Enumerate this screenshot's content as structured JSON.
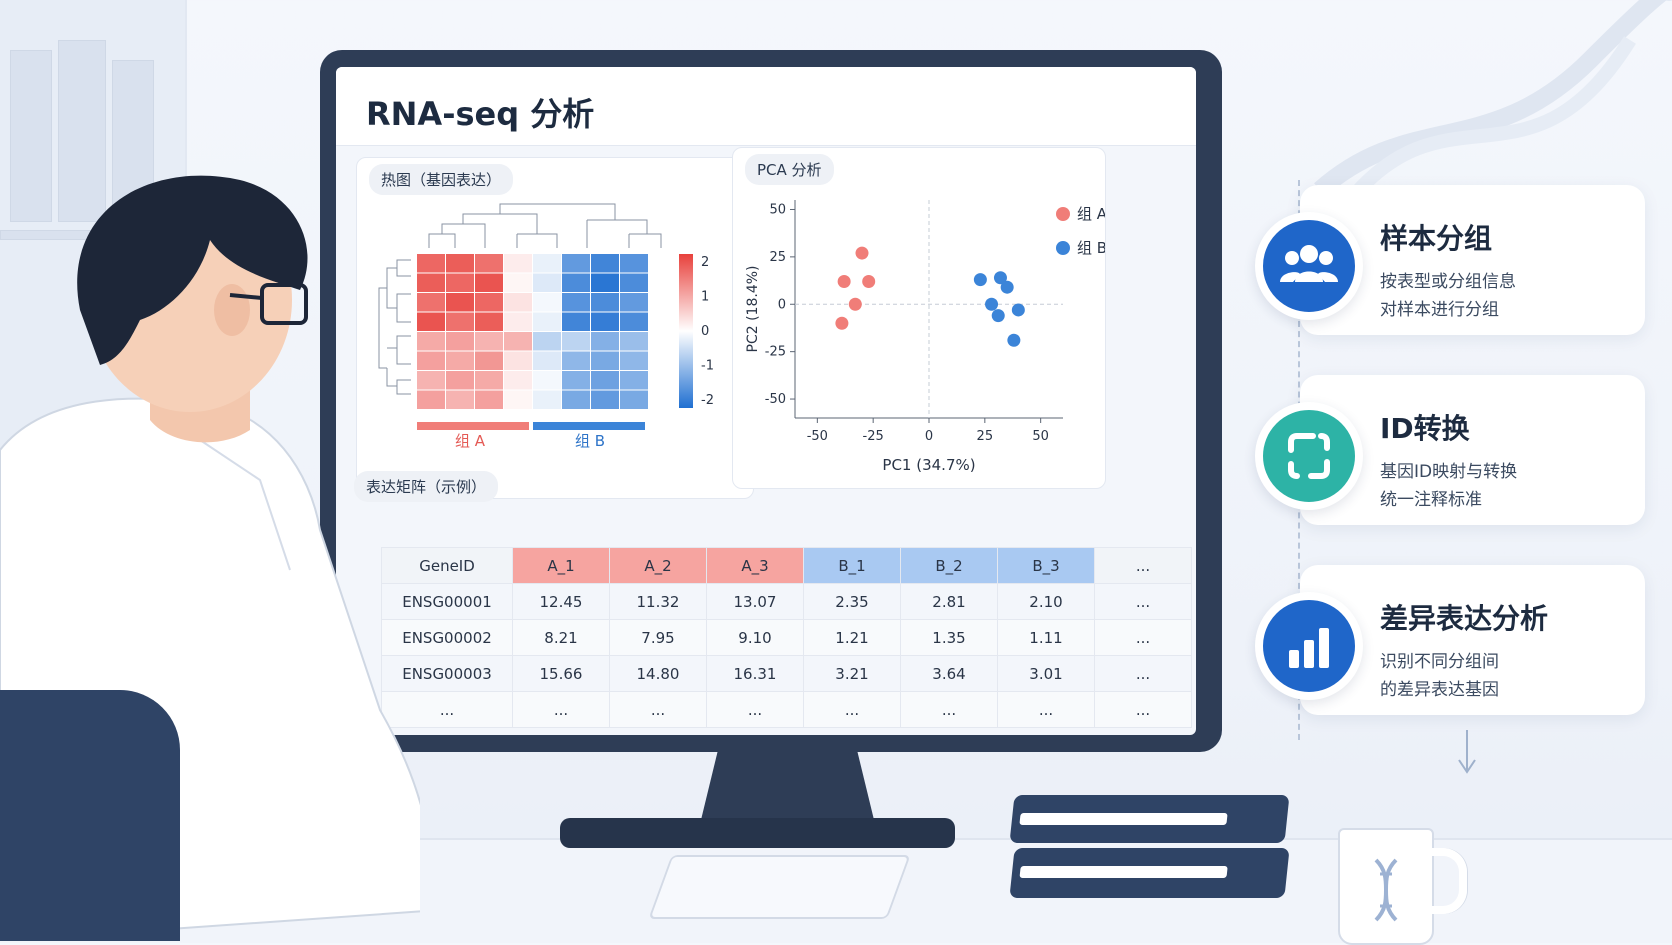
{
  "screen": {
    "title": "RNA-seq 分析",
    "heatmap": {
      "label": "热图（基因表达）",
      "group_a": "组 A",
      "group_b": "组 B",
      "colorbar_ticks": [
        "2",
        "1",
        "0",
        "-1",
        "-2"
      ],
      "colors": {
        "high": "#e8413c",
        "mid": "#ffffff",
        "low": "#1f6fd1"
      },
      "matrix": [
        [
          1.6,
          1.7,
          1.5,
          0.2,
          -0.2,
          -1.4,
          -1.7,
          -1.5
        ],
        [
          1.7,
          1.6,
          1.8,
          0.1,
          -0.3,
          -1.6,
          -1.9,
          -1.6
        ],
        [
          1.5,
          1.8,
          1.6,
          0.3,
          -0.1,
          -1.5,
          -1.6,
          -1.4
        ],
        [
          1.8,
          1.5,
          1.7,
          0.2,
          -0.2,
          -1.7,
          -1.8,
          -1.6
        ],
        [
          0.9,
          1.0,
          0.8,
          0.8,
          -0.6,
          -0.6,
          -1.1,
          -0.9
        ],
        [
          1.0,
          0.9,
          1.1,
          0.3,
          -0.3,
          -1.0,
          -1.2,
          -1.0
        ],
        [
          0.8,
          1.0,
          0.9,
          0.2,
          -0.1,
          -1.1,
          -1.3,
          -1.1
        ],
        [
          1.0,
          0.8,
          1.0,
          0.1,
          -0.2,
          -1.2,
          -1.4,
          -1.2
        ]
      ]
    },
    "pca": {
      "label": "PCA 分析",
      "legend": [
        "组 A",
        "组 B"
      ]
    },
    "matrix_label": "表达矩阵（示例）",
    "table": {
      "headers": [
        "GeneID",
        "A_1",
        "A_2",
        "A_3",
        "B_1",
        "B_2",
        "B_3",
        "..."
      ],
      "rows": [
        [
          "ENSG00001",
          "12.45",
          "11.32",
          "13.07",
          "2.35",
          "2.81",
          "2.10",
          "..."
        ],
        [
          "ENSG00002",
          "8.21",
          "7.95",
          "9.10",
          "1.21",
          "1.35",
          "1.11",
          "..."
        ],
        [
          "ENSG00003",
          "15.66",
          "14.80",
          "16.31",
          "3.21",
          "3.64",
          "3.01",
          "..."
        ],
        [
          "...",
          "...",
          "...",
          "...",
          "...",
          "...",
          "...",
          "..."
        ]
      ]
    }
  },
  "chart_data": {
    "type": "scatter",
    "xlabel": "PC1 (34.7%)",
    "ylabel": "PC2 (18.4%)",
    "xlim": [
      -60,
      60
    ],
    "ylim": [
      -60,
      55
    ],
    "xticks": [
      -50,
      -25,
      0,
      25,
      50
    ],
    "yticks": [
      50,
      25,
      0,
      -25,
      -50
    ],
    "legend_position": "top-right",
    "series": [
      {
        "name": "组 A",
        "color": "#f07d78",
        "points": [
          [
            -30,
            27
          ],
          [
            -38,
            12
          ],
          [
            -27,
            12
          ],
          [
            -33,
            0
          ],
          [
            -39,
            -10
          ]
        ]
      },
      {
        "name": "组 B",
        "color": "#3b84d8",
        "points": [
          [
            23,
            13
          ],
          [
            32,
            14
          ],
          [
            35,
            9
          ],
          [
            28,
            0
          ],
          [
            40,
            -3
          ],
          [
            31,
            -6
          ],
          [
            38,
            -19
          ]
        ]
      }
    ]
  },
  "cards": [
    {
      "title": "样本分组",
      "line1": "按表型或分组信息",
      "line2": "对样本进行分组",
      "icon": "users-icon",
      "color": "#1f66c9"
    },
    {
      "title": "ID转换",
      "line1": "基因ID映射与转换",
      "line2": "统一注释标准",
      "icon": "convert-icon",
      "color": "#2db3a6"
    },
    {
      "title": "差异表达分析",
      "line1": "识别不同分组间",
      "line2": "的差异表达基因",
      "icon": "bar-chart-icon",
      "color": "#1f66c9"
    }
  ]
}
